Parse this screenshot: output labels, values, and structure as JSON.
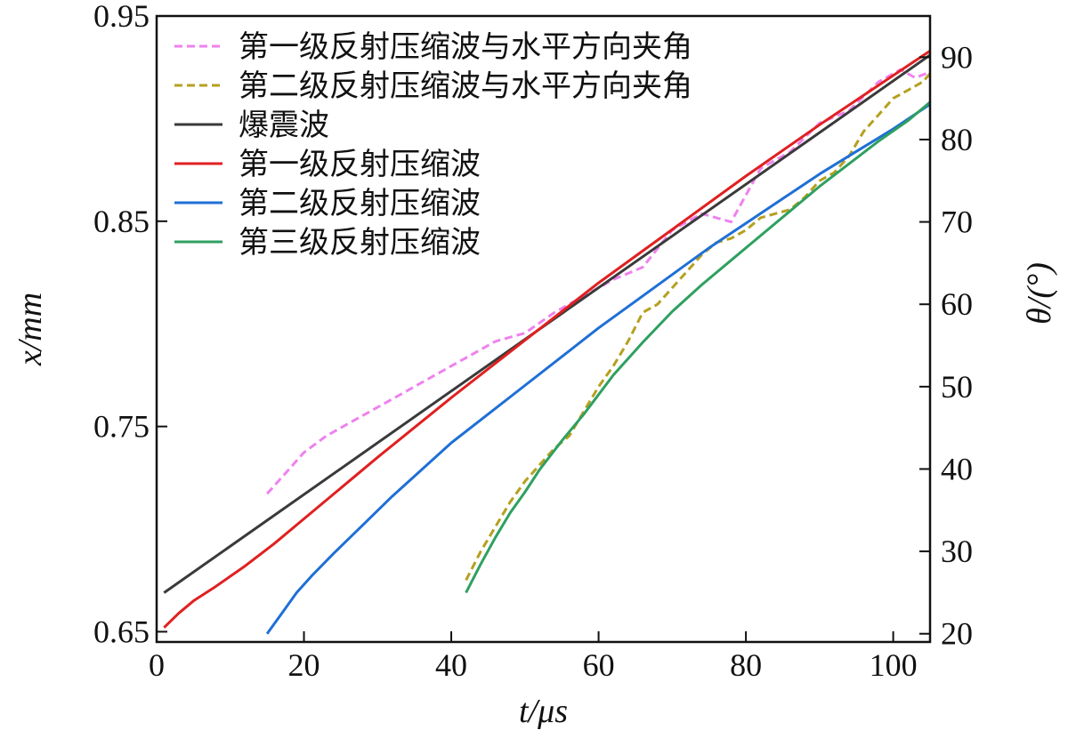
{
  "chart_data": {
    "type": "line",
    "xlabel": "t/μs",
    "ylabel_left": "x/mm",
    "ylabel_right": "θ/(°)",
    "xlim": [
      0,
      105
    ],
    "ylim_left": [
      0.645,
      0.95
    ],
    "ylim_right": [
      19,
      95
    ],
    "x_ticks": [
      "0",
      "20",
      "40",
      "60",
      "80",
      "100"
    ],
    "y_left_ticks": [
      "0.65",
      "0.75",
      "0.85",
      "0.95"
    ],
    "y_right_ticks": [
      "20",
      "30",
      "40",
      "50",
      "60",
      "70",
      "80",
      "90"
    ],
    "grid": false,
    "legend_position": "top-left",
    "series": [
      {
        "name": "第一级反射压缩波与水平方向夹角",
        "axis": "right",
        "color": "#ee82ee",
        "dash": "dashed",
        "x": [
          15,
          18,
          20,
          23,
          26,
          30,
          34,
          38,
          42,
          46,
          50,
          54,
          58,
          62,
          66,
          70,
          74,
          78,
          82,
          86,
          90,
          94,
          98,
          101,
          103,
          105
        ],
        "y": [
          37,
          40,
          42,
          44,
          45.5,
          47.5,
          49.5,
          51.5,
          53.5,
          55.5,
          56.5,
          59,
          61,
          63,
          64.5,
          69,
          71,
          70,
          76.5,
          78.5,
          82,
          83.5,
          87,
          88.5,
          87.5,
          88.2
        ]
      },
      {
        "name": "第二级反射压缩波与水平方向夹角",
        "axis": "right",
        "color": "#b5a020",
        "dash": "dashed",
        "x": [
          42,
          44,
          46,
          48,
          50,
          52,
          54,
          56,
          58,
          60,
          62,
          64,
          66,
          68,
          70,
          72,
          74,
          76,
          78,
          80,
          82,
          84,
          86,
          88,
          90,
          92,
          94,
          96,
          98,
          100,
          102,
          104,
          105
        ],
        "y": [
          26.5,
          30,
          33,
          36,
          38.5,
          40.5,
          42.5,
          44,
          47,
          50,
          52.5,
          55.5,
          59,
          60,
          62,
          64,
          66,
          67.5,
          68,
          69,
          70.5,
          71,
          71.5,
          73,
          75,
          76,
          78,
          81,
          83,
          85,
          86,
          87,
          88
        ]
      },
      {
        "name": "爆震波",
        "axis": "left",
        "color": "#3a3a3a",
        "dash": "solid",
        "x": [
          1,
          105
        ],
        "y": [
          0.669,
          0.931
        ]
      },
      {
        "name": "第一级反射压缩波",
        "axis": "left",
        "color": "#e02020",
        "dash": "solid",
        "x": [
          1,
          3,
          5,
          8,
          12,
          16,
          20,
          30,
          40,
          50,
          60,
          70,
          80,
          90,
          100,
          105
        ],
        "y": [
          0.652,
          0.659,
          0.665,
          0.672,
          0.682,
          0.693,
          0.705,
          0.735,
          0.764,
          0.792,
          0.82,
          0.846,
          0.872,
          0.897,
          0.921,
          0.933
        ]
      },
      {
        "name": "第二级反射压缩波",
        "axis": "left",
        "color": "#1f6fd6",
        "dash": "solid",
        "x": [
          15,
          17,
          19,
          21,
          24,
          28,
          32,
          36,
          40,
          45,
          50,
          55,
          60,
          65,
          70,
          75,
          80,
          85,
          90,
          95,
          100,
          105
        ],
        "y": [
          0.649,
          0.659,
          0.669,
          0.677,
          0.688,
          0.702,
          0.716,
          0.729,
          0.742,
          0.756,
          0.77,
          0.784,
          0.798,
          0.811,
          0.824,
          0.837,
          0.849,
          0.861,
          0.873,
          0.884,
          0.895,
          0.907
        ]
      },
      {
        "name": "第三级反射压缩波",
        "axis": "left",
        "color": "#2ea060",
        "dash": "solid",
        "x": [
          42,
          44,
          46,
          48,
          50,
          52,
          55,
          58,
          62,
          66,
          70,
          74,
          78,
          82,
          86,
          90,
          94,
          98,
          102,
          105
        ],
        "y": [
          0.669,
          0.683,
          0.696,
          0.708,
          0.718,
          0.729,
          0.743,
          0.756,
          0.775,
          0.791,
          0.806,
          0.819,
          0.831,
          0.843,
          0.855,
          0.867,
          0.878,
          0.889,
          0.899,
          0.908
        ]
      }
    ]
  }
}
